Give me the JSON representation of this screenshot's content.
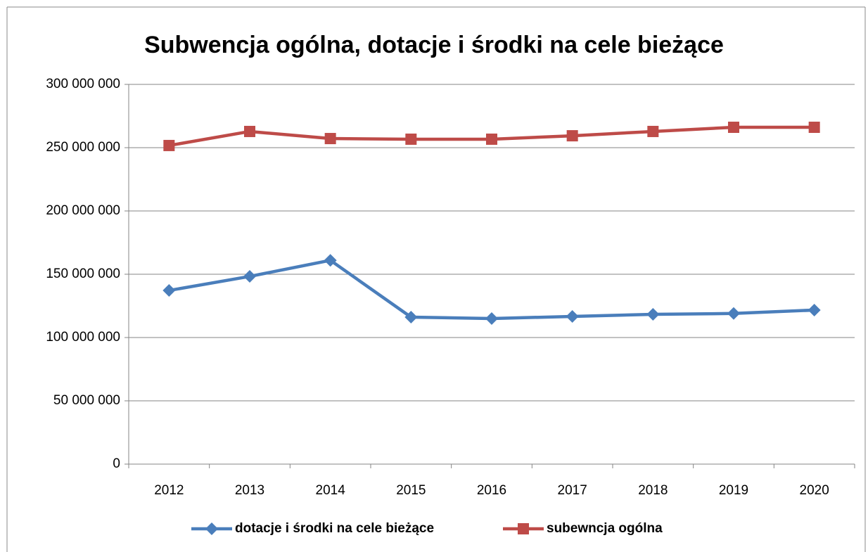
{
  "chart_data": {
    "type": "line",
    "title": "Subwencja ogólna, dotacje i środki na cele bieżące",
    "categories": [
      "2012",
      "2013",
      "2014",
      "2015",
      "2016",
      "2017",
      "2018",
      "2019",
      "2020"
    ],
    "series": [
      {
        "name": "dotacje i środki na cele bieżące",
        "color": "#4a7ebb",
        "marker": "diamond",
        "values": [
          137200000,
          148300000,
          161000000,
          116100000,
          115000000,
          116700000,
          118300000,
          119000000,
          121700000
        ]
      },
      {
        "name": "subewncja ogólna",
        "color": "#be4b48",
        "marker": "square",
        "values": [
          251700000,
          262800000,
          257200000,
          256700000,
          256700000,
          259400000,
          262800000,
          266100000,
          266100000
        ]
      }
    ],
    "ylim": [
      0,
      300000000
    ],
    "yticks": [
      0,
      {
        "value": 50000000,
        "label": "50 000 000"
      },
      {
        "value": 100000000,
        "label": "100 000 000"
      },
      {
        "value": 150000000,
        "label": "150 000 000"
      },
      {
        "value": 200000000,
        "label": "200 000 000"
      },
      {
        "value": 250000000,
        "label": "250 000 000"
      },
      {
        "value": 300000000,
        "label": "300 000 000"
      }
    ],
    "grid": true,
    "legend": "bottom"
  }
}
